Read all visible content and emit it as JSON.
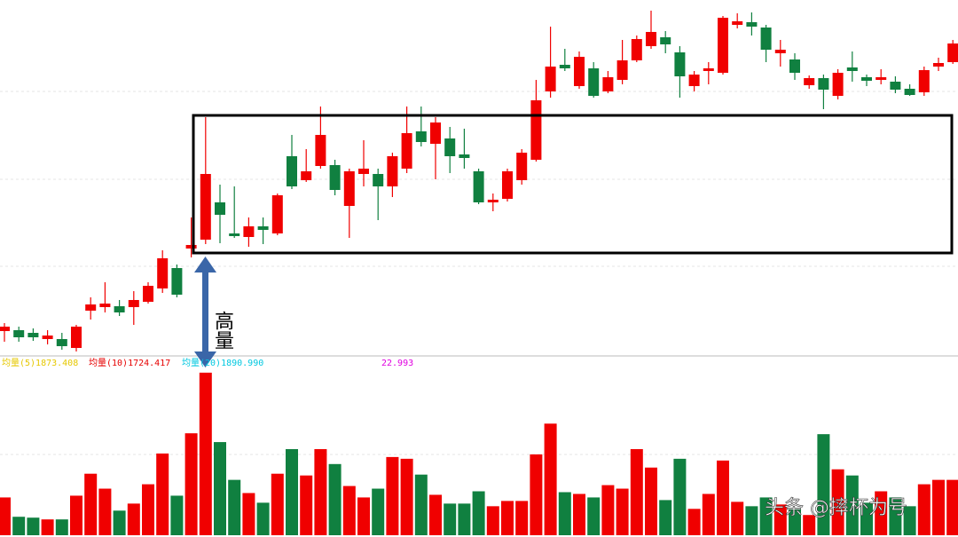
{
  "chart_data": {
    "type": "candlestick",
    "annotation": "高量",
    "watermark": "头条 @摔杯为号",
    "indicators": [
      {
        "text": "均量(5)1873.408",
        "color": "#e6c800"
      },
      {
        "text": "均量(10)1724.417",
        "color": "#e60000"
      },
      {
        "text": "均量(20)1890.990",
        "color": "#00c8e0"
      },
      {
        "text": "22.993",
        "color": "#e000e0"
      }
    ],
    "up_color": "#f00000",
    "down_color": "#108040",
    "ylim": [
      0,
      400
    ],
    "volume_lim": [
      0,
      200
    ],
    "open": [
      27,
      28,
      25,
      18,
      18,
      8,
      50,
      54,
      55,
      54,
      60,
      75,
      98,
      120,
      130,
      172,
      137,
      133,
      145,
      137,
      224,
      197,
      213,
      214,
      168,
      204,
      204,
      190,
      210,
      252,
      238,
      244,
      226,
      207,
      172,
      176,
      197,
      220,
      297,
      327,
      303,
      323,
      297,
      310,
      332,
      348,
      358,
      341,
      303,
      320,
      318,
      372,
      375,
      369,
      340,
      333,
      304,
      312,
      292,
      324,
      313,
      310,
      308,
      300,
      296,
      325,
      330
    ],
    "close": [
      32,
      20,
      20,
      22,
      10,
      32,
      57,
      58,
      48,
      62,
      78,
      109,
      68,
      124,
      204,
      158,
      134,
      145,
      141,
      180,
      190,
      207,
      248,
      186,
      207,
      210,
      190,
      224,
      250,
      240,
      262,
      224,
      222,
      172,
      175,
      207,
      228,
      287,
      325,
      323,
      336,
      292,
      313,
      332,
      356,
      364,
      350,
      314,
      316,
      323,
      380,
      376,
      370,
      344,
      344,
      318,
      312,
      299,
      318,
      320,
      309,
      313,
      299,
      293,
      321,
      329,
      351
    ],
    "high": [
      36,
      32,
      30,
      28,
      25,
      34,
      65,
      82,
      62,
      72,
      82,
      118,
      102,
      155,
      268,
      192,
      190,
      155,
      155,
      182,
      248,
      232,
      280,
      220,
      210,
      242,
      210,
      228,
      280,
      280,
      268,
      257,
      255,
      210,
      182,
      210,
      232,
      310,
      370,
      345,
      342,
      330,
      320,
      355,
      360,
      388,
      365,
      348,
      320,
      330,
      382,
      385,
      386,
      372,
      355,
      340,
      315,
      316,
      322,
      342,
      316,
      322,
      314,
      305,
      325,
      335,
      355
    ],
    "low": [
      15,
      15,
      16,
      12,
      6,
      4,
      40,
      48,
      44,
      34,
      58,
      70,
      65,
      110,
      125,
      126,
      132,
      122,
      125,
      135,
      187,
      195,
      210,
      180,
      132,
      190,
      152,
      178,
      205,
      235,
      198,
      205,
      210,
      170,
      162,
      173,
      192,
      218,
      290,
      320,
      300,
      290,
      295,
      305,
      330,
      345,
      340,
      290,
      297,
      305,
      316,
      368,
      360,
      330,
      325,
      310,
      300,
      277,
      288,
      308,
      303,
      305,
      295,
      292,
      292,
      320,
      328
    ],
    "volume": [
      43,
      21,
      20,
      18,
      18,
      45,
      70,
      53,
      28,
      36,
      58,
      93,
      45,
      116,
      185,
      106,
      63,
      48,
      37,
      70,
      98,
      68,
      98,
      81,
      56,
      43,
      53,
      89,
      87,
      69,
      46,
      36,
      36,
      50,
      33,
      39,
      39,
      92,
      127,
      49,
      47,
      43,
      57,
      53,
      98,
      77,
      40,
      87,
      30,
      47,
      85,
      38,
      33,
      43,
      35,
      31,
      23,
      115,
      75,
      68,
      37,
      50,
      43,
      33,
      58,
      63,
      63
    ]
  }
}
